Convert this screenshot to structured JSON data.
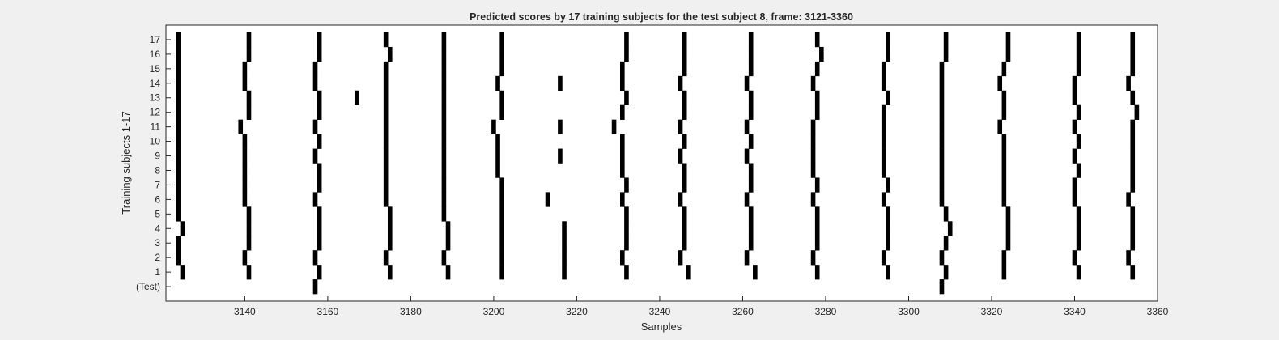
{
  "chart_data": {
    "type": "heatmap",
    "title": "Predicted scores by 17 training subjects for the test subject 8, frame: 3121-3360",
    "xlabel": "Samples",
    "ylabel": "Training subjects 1-17",
    "xlim": [
      3121,
      3360
    ],
    "x_ticks": [
      3140,
      3160,
      3180,
      3200,
      3220,
      3240,
      3260,
      3280,
      3300,
      3320,
      3340,
      3360
    ],
    "y_tick_labels": [
      "(Test)",
      "1",
      "2",
      "3",
      "4",
      "5",
      "6",
      "7",
      "8",
      "9",
      "10",
      "11",
      "12",
      "13",
      "14",
      "15",
      "16",
      "17"
    ],
    "grid": false,
    "colors": {
      "mark": "#000000",
      "background": "#ffffff",
      "figure": "#f0f0f0"
    },
    "rows": [
      {
        "label": "(Test)",
        "marks": [
          3157,
          3308
        ]
      },
      {
        "label": "1",
        "marks": [
          3125,
          3141,
          3158,
          3175,
          3189,
          3202,
          3217,
          3232,
          3247,
          3263,
          3278,
          3295,
          3309,
          3323,
          3341,
          3354
        ]
      },
      {
        "label": "2",
        "marks": [
          3124,
          3140,
          3157,
          3174,
          3188,
          3202,
          3217,
          3231,
          3245,
          3261,
          3277,
          3294,
          3308,
          3323,
          3340,
          3353
        ]
      },
      {
        "label": "3",
        "marks": [
          3124,
          3141,
          3158,
          3175,
          3189,
          3202,
          3217,
          3232,
          3246,
          3262,
          3278,
          3295,
          3309,
          3324,
          3341,
          3354
        ]
      },
      {
        "label": "4",
        "marks": [
          3125,
          3141,
          3158,
          3175,
          3189,
          3202,
          3217,
          3232,
          3246,
          3262,
          3278,
          3295,
          3310,
          3324,
          3341,
          3354
        ]
      },
      {
        "label": "5",
        "marks": [
          3124,
          3141,
          3158,
          3175,
          3188,
          3202,
          3232,
          3246,
          3262,
          3278,
          3295,
          3309,
          3324,
          3341,
          3354
        ]
      },
      {
        "label": "6",
        "marks": [
          3124,
          3140,
          3157,
          3174,
          3188,
          3202,
          3213,
          3231,
          3245,
          3261,
          3277,
          3294,
          3308,
          3323,
          3340,
          3353
        ]
      },
      {
        "label": "7",
        "marks": [
          3124,
          3140,
          3158,
          3174,
          3188,
          3202,
          3232,
          3246,
          3262,
          3278,
          3295,
          3308,
          3323,
          3340,
          3354
        ]
      },
      {
        "label": "8",
        "marks": [
          3124,
          3140,
          3158,
          3174,
          3188,
          3201,
          3231,
          3246,
          3262,
          3277,
          3294,
          3308,
          3323,
          3341,
          3354
        ]
      },
      {
        "label": "9",
        "marks": [
          3124,
          3140,
          3157,
          3174,
          3188,
          3201,
          3216,
          3231,
          3245,
          3261,
          3277,
          3294,
          3308,
          3323,
          3340,
          3354
        ]
      },
      {
        "label": "10",
        "marks": [
          3124,
          3140,
          3158,
          3174,
          3188,
          3201,
          3231,
          3246,
          3262,
          3277,
          3294,
          3308,
          3323,
          3341,
          3354
        ]
      },
      {
        "label": "11",
        "marks": [
          3124,
          3139,
          3157,
          3174,
          3188,
          3200,
          3216,
          3229,
          3245,
          3261,
          3277,
          3294,
          3308,
          3322,
          3340,
          3354
        ]
      },
      {
        "label": "12",
        "marks": [
          3124,
          3141,
          3158,
          3174,
          3188,
          3202,
          3231,
          3246,
          3262,
          3278,
          3294,
          3308,
          3323,
          3341,
          3355
        ]
      },
      {
        "label": "13",
        "marks": [
          3124,
          3141,
          3158,
          3167,
          3174,
          3188,
          3202,
          3232,
          3246,
          3262,
          3278,
          3295,
          3308,
          3323,
          3340,
          3354
        ]
      },
      {
        "label": "14",
        "marks": [
          3124,
          3140,
          3157,
          3174,
          3188,
          3201,
          3216,
          3231,
          3245,
          3261,
          3277,
          3294,
          3308,
          3322,
          3340,
          3353
        ]
      },
      {
        "label": "15",
        "marks": [
          3124,
          3140,
          3157,
          3174,
          3188,
          3202,
          3231,
          3246,
          3262,
          3278,
          3294,
          3308,
          3323,
          3341,
          3354
        ]
      },
      {
        "label": "16",
        "marks": [
          3124,
          3141,
          3158,
          3175,
          3188,
          3202,
          3232,
          3246,
          3262,
          3279,
          3295,
          3309,
          3324,
          3341,
          3354
        ]
      },
      {
        "label": "17",
        "marks": [
          3124,
          3141,
          3158,
          3174,
          3188,
          3202,
          3232,
          3246,
          3262,
          3278,
          3295,
          3309,
          3324,
          3341,
          3354
        ]
      }
    ]
  }
}
